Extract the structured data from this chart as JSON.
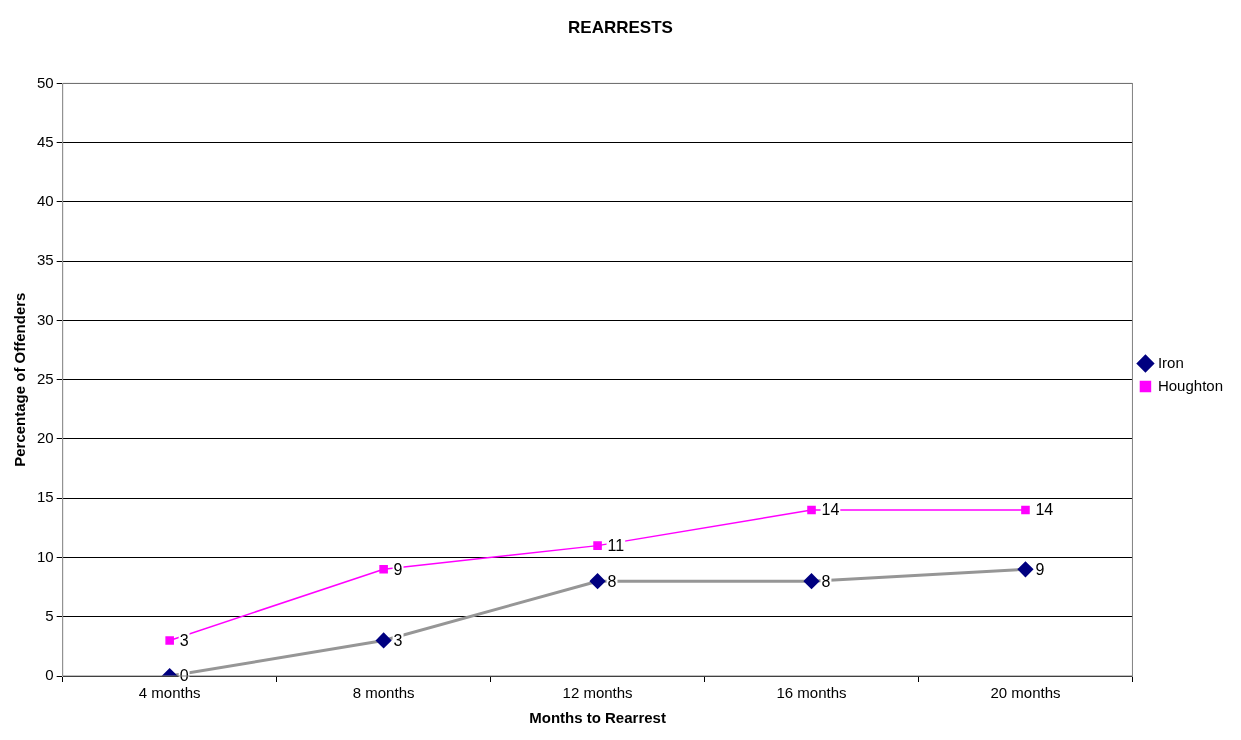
{
  "chart_data": {
    "type": "line",
    "title": "REARRESTS",
    "xlabel": "Months to Rearrest",
    "ylabel": "Percentage of Offenders",
    "categories": [
      "4 months",
      "8 months",
      "12 months",
      "16 months",
      "20 months"
    ],
    "series": [
      {
        "name": "Iron",
        "color": "#969696",
        "colors": [
          "#000080",
          "#000080",
          "#000080",
          "#000080",
          "#000080"
        ],
        "marker": "diamond",
        "values": [
          0,
          3,
          8,
          8,
          9
        ]
      },
      {
        "name": "Houghton",
        "color": "#ff00ff",
        "marker": "square",
        "values": [
          3,
          9,
          11,
          14,
          14
        ]
      }
    ],
    "ylim": [
      0,
      50
    ],
    "yticks": [
      0,
      5,
      10,
      15,
      20,
      25,
      30,
      35,
      40,
      45,
      50
    ],
    "grid": "y",
    "legend": "right",
    "data_labels": true,
    "line_style": "solid"
  }
}
